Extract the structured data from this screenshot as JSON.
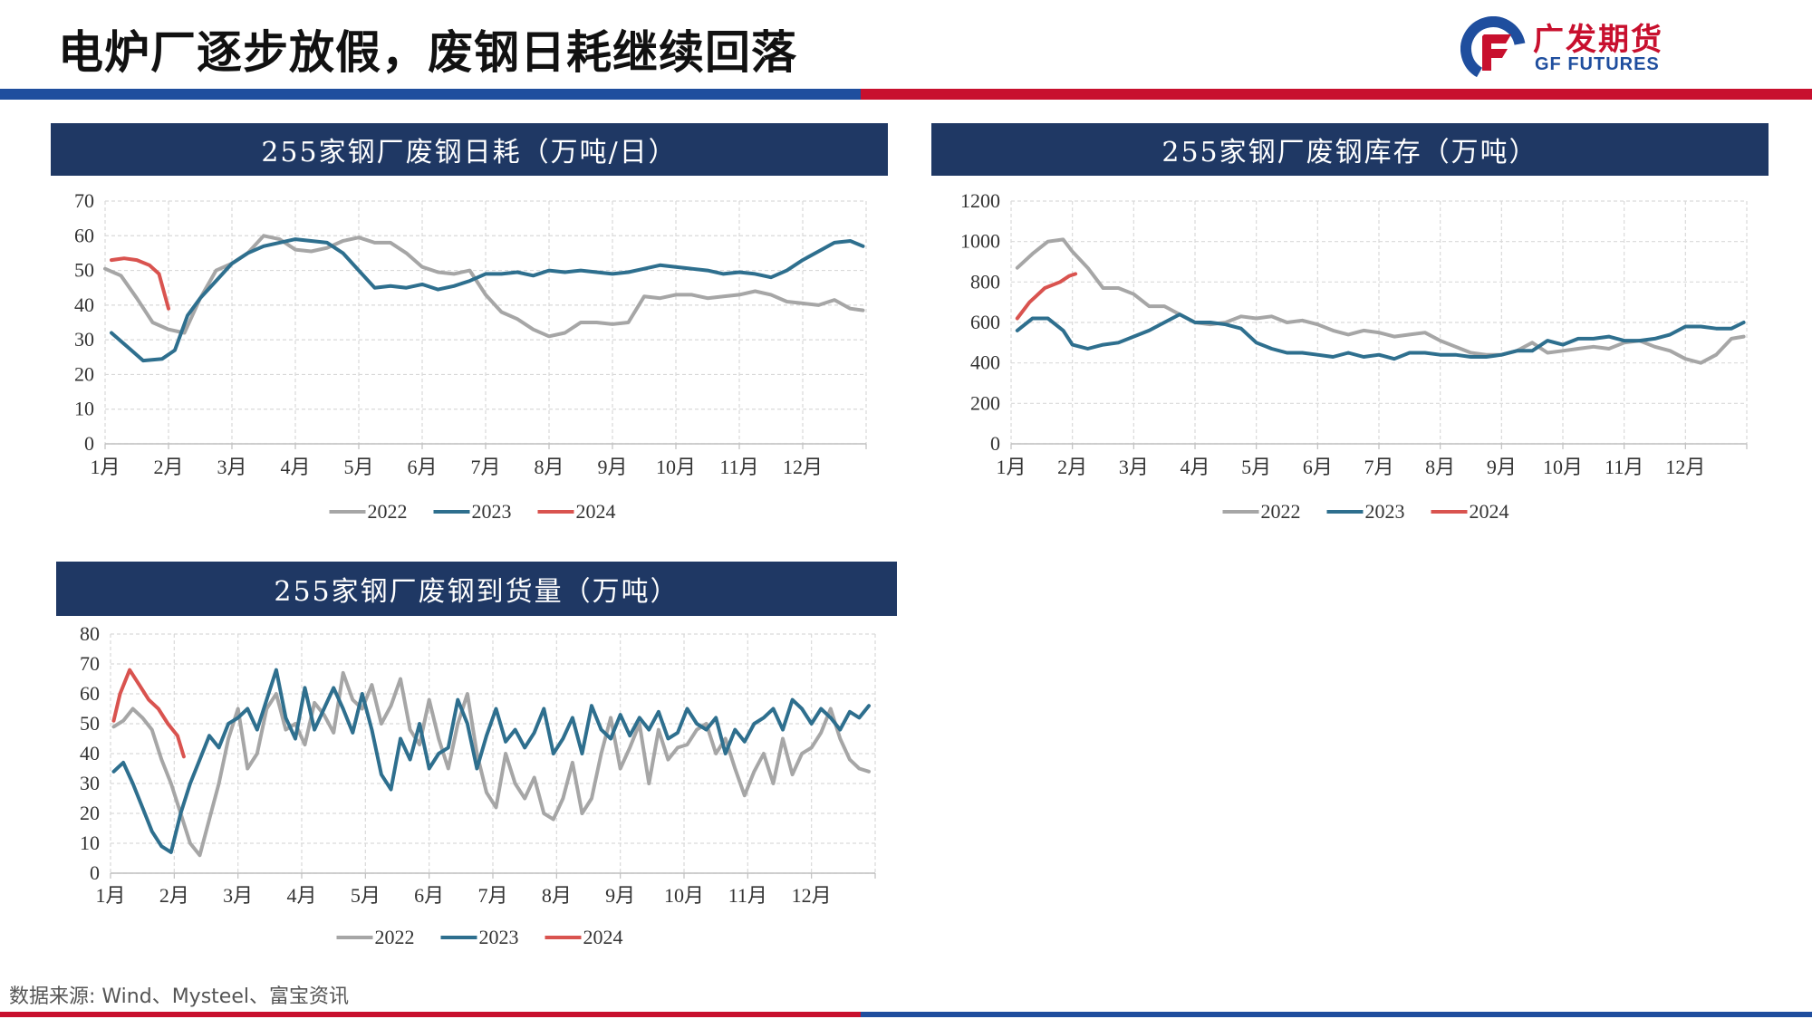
{
  "header": {
    "title": "电炉厂逐步放假，废钢日耗继续回落",
    "logo_cn": "广发期货",
    "logo_en": "GF FUTURES",
    "brand_blue": "#1f4e9e",
    "brand_red": "#c8102e"
  },
  "footer": {
    "source": "数据来源: Wind、Mysteel、富宝资讯"
  },
  "colors": {
    "s2022": "#a6a6a6",
    "s2023": "#2e6f8e",
    "s2024": "#d9534f",
    "header_bg": "#1f3864"
  },
  "legend": [
    "2022",
    "2023",
    "2024"
  ],
  "chart_data": [
    {
      "id": "consumption",
      "type": "line",
      "title": "255家钢厂废钢日耗（万吨/日）",
      "x_categories": [
        "1月",
        "2月",
        "3月",
        "4月",
        "5月",
        "6月",
        "7月",
        "8月",
        "9月",
        "10月",
        "11月",
        "12月"
      ],
      "ylim": [
        0,
        70
      ],
      "yticks": [
        0,
        10,
        20,
        30,
        40,
        50,
        60,
        70
      ],
      "grid": true,
      "legend_position": "bottom",
      "series": [
        {
          "name": "2022",
          "color_key": "s2022",
          "x": [
            0,
            0.25,
            0.5,
            0.75,
            1,
            1.25,
            1.5,
            1.75,
            2,
            2.25,
            2.5,
            2.75,
            3,
            3.25,
            3.5,
            3.75,
            4,
            4.25,
            4.5,
            4.75,
            5,
            5.25,
            5.5,
            5.75,
            6,
            6.25,
            6.5,
            6.75,
            7,
            7.25,
            7.5,
            7.75,
            8,
            8.25,
            8.5,
            8.75,
            9,
            9.25,
            9.5,
            9.75,
            10,
            10.25,
            10.5,
            10.75,
            11,
            11.25,
            11.5,
            11.75,
            11.95
          ],
          "y": [
            50.5,
            48.5,
            42,
            35,
            33,
            32,
            42,
            50,
            52,
            55,
            60,
            59,
            56,
            55.5,
            56.5,
            58.5,
            59.5,
            58,
            58,
            55,
            51,
            49.5,
            49,
            50,
            43,
            38,
            36,
            33,
            31,
            32,
            35,
            35,
            34.5,
            35,
            42.5,
            42,
            43,
            43,
            42,
            42.5,
            43,
            44,
            43,
            41,
            40.5,
            40,
            41.5,
            39,
            38.5
          ]
        },
        {
          "name": "2023",
          "color_key": "s2023",
          "x": [
            0.1,
            0.35,
            0.6,
            0.9,
            1.1,
            1.3,
            1.5,
            1.75,
            2,
            2.25,
            2.5,
            2.75,
            3,
            3.25,
            3.5,
            3.75,
            4,
            4.25,
            4.5,
            4.75,
            5,
            5.25,
            5.5,
            5.75,
            6,
            6.25,
            6.5,
            6.75,
            7,
            7.25,
            7.5,
            7.75,
            8,
            8.25,
            8.5,
            8.75,
            9,
            9.25,
            9.5,
            9.75,
            10,
            10.25,
            10.5,
            10.75,
            11,
            11.25,
            11.5,
            11.75,
            11.95
          ],
          "y": [
            32,
            28,
            24,
            24.5,
            27,
            37,
            42,
            47,
            52,
            55,
            57,
            58,
            59,
            58.5,
            58,
            55,
            50,
            45,
            45.5,
            45,
            46,
            44.5,
            45.5,
            47,
            49,
            49,
            49.5,
            48.5,
            50,
            49.5,
            50,
            49.5,
            49,
            49.5,
            50.5,
            51.5,
            51,
            50.5,
            50,
            49,
            49.5,
            49,
            48,
            50,
            53,
            55.5,
            58,
            58.5,
            57
          ]
        },
        {
          "name": "2024",
          "color_key": "s2024",
          "x": [
            0.1,
            0.3,
            0.5,
            0.7,
            0.85,
            1.0
          ],
          "y": [
            53,
            53.5,
            53,
            51.5,
            49,
            39
          ]
        }
      ]
    },
    {
      "id": "inventory",
      "type": "line",
      "title": "255家钢厂废钢库存（万吨）",
      "x_categories": [
        "1月",
        "2月",
        "3月",
        "4月",
        "5月",
        "6月",
        "7月",
        "8月",
        "9月",
        "10月",
        "11月",
        "12月"
      ],
      "ylim": [
        0,
        1200
      ],
      "yticks": [
        0,
        200,
        400,
        600,
        800,
        1000,
        1200
      ],
      "grid": true,
      "legend_position": "bottom",
      "series": [
        {
          "name": "2022",
          "color_key": "s2022",
          "x": [
            0.1,
            0.35,
            0.6,
            0.85,
            1,
            1.25,
            1.5,
            1.75,
            2,
            2.25,
            2.5,
            2.75,
            3,
            3.25,
            3.5,
            3.75,
            4,
            4.25,
            4.5,
            4.75,
            5,
            5.25,
            5.5,
            5.75,
            6,
            6.25,
            6.5,
            6.75,
            7,
            7.25,
            7.5,
            7.75,
            8,
            8.25,
            8.5,
            8.75,
            9,
            9.25,
            9.5,
            9.75,
            10,
            10.25,
            10.5,
            10.75,
            11,
            11.25,
            11.5,
            11.75,
            11.95
          ],
          "y": [
            870,
            940,
            1000,
            1010,
            950,
            870,
            770,
            770,
            740,
            680,
            680,
            640,
            600,
            590,
            600,
            630,
            620,
            630,
            600,
            610,
            590,
            560,
            540,
            560,
            550,
            530,
            540,
            550,
            510,
            480,
            450,
            440,
            440,
            460,
            500,
            450,
            460,
            470,
            480,
            470,
            500,
            510,
            480,
            460,
            420,
            400,
            440,
            520,
            530
          ]
        },
        {
          "name": "2023",
          "color_key": "s2023",
          "x": [
            0.1,
            0.35,
            0.6,
            0.85,
            1,
            1.25,
            1.5,
            1.75,
            2,
            2.25,
            2.5,
            2.75,
            3,
            3.25,
            3.5,
            3.75,
            4,
            4.25,
            4.5,
            4.75,
            5,
            5.25,
            5.5,
            5.75,
            6,
            6.25,
            6.5,
            6.75,
            7,
            7.25,
            7.5,
            7.75,
            8,
            8.25,
            8.5,
            8.75,
            9,
            9.25,
            9.5,
            9.75,
            10,
            10.25,
            10.5,
            10.75,
            11,
            11.25,
            11.5,
            11.75,
            11.95
          ],
          "y": [
            560,
            620,
            620,
            560,
            490,
            470,
            490,
            500,
            530,
            560,
            600,
            640,
            600,
            600,
            590,
            570,
            500,
            470,
            450,
            450,
            440,
            430,
            450,
            430,
            440,
            420,
            450,
            450,
            440,
            440,
            430,
            430,
            440,
            460,
            460,
            510,
            490,
            520,
            520,
            530,
            510,
            510,
            520,
            540,
            580,
            580,
            570,
            570,
            600
          ]
        },
        {
          "name": "2024",
          "color_key": "s2024",
          "x": [
            0.1,
            0.3,
            0.55,
            0.8,
            0.95,
            1.05
          ],
          "y": [
            620,
            700,
            770,
            800,
            830,
            840
          ]
        }
      ]
    },
    {
      "id": "arrivals",
      "type": "line",
      "title": "255家钢厂废钢到货量（万吨）",
      "x_categories": [
        "1月",
        "2月",
        "3月",
        "4月",
        "5月",
        "6月",
        "7月",
        "8月",
        "9月",
        "10月",
        "11月",
        "12月"
      ],
      "ylim": [
        0,
        80
      ],
      "yticks": [
        0,
        10,
        20,
        30,
        40,
        50,
        60,
        70,
        80
      ],
      "grid": true,
      "legend_position": "bottom",
      "series": [
        {
          "name": "2022",
          "color_key": "s2022",
          "x": [
            0.05,
            0.2,
            0.35,
            0.5,
            0.65,
            0.8,
            0.95,
            1.1,
            1.25,
            1.4,
            1.55,
            1.7,
            1.85,
            2,
            2.15,
            2.3,
            2.45,
            2.6,
            2.75,
            2.9,
            3.05,
            3.2,
            3.35,
            3.5,
            3.65,
            3.8,
            3.95,
            4.1,
            4.25,
            4.4,
            4.55,
            4.7,
            4.85,
            5,
            5.15,
            5.3,
            5.45,
            5.6,
            5.75,
            5.9,
            6.05,
            6.2,
            6.35,
            6.5,
            6.65,
            6.8,
            6.95,
            7.1,
            7.25,
            7.4,
            7.55,
            7.7,
            7.85,
            8,
            8.15,
            8.3,
            8.45,
            8.6,
            8.75,
            8.9,
            9.05,
            9.2,
            9.35,
            9.5,
            9.65,
            9.8,
            9.95,
            10.1,
            10.25,
            10.4,
            10.55,
            10.7,
            10.85,
            11,
            11.15,
            11.3,
            11.45,
            11.6,
            11.75,
            11.9
          ],
          "y": [
            49,
            51,
            55,
            52,
            48,
            38,
            30,
            20,
            10,
            6,
            18,
            30,
            45,
            55,
            35,
            40,
            55,
            60,
            48,
            50,
            43,
            57,
            53,
            47,
            67,
            58,
            55,
            63,
            50,
            56,
            65,
            48,
            43,
            58,
            45,
            35,
            50,
            60,
            40,
            27,
            22,
            40,
            30,
            25,
            32,
            20,
            18,
            25,
            37,
            20,
            25,
            40,
            52,
            35,
            42,
            50,
            30,
            48,
            38,
            42,
            43,
            48,
            50,
            40,
            45,
            35,
            26,
            34,
            40,
            30,
            45,
            33,
            40,
            42,
            47,
            55,
            45,
            38,
            35,
            34
          ]
        },
        {
          "name": "2023",
          "color_key": "s2023",
          "x": [
            0.05,
            0.2,
            0.35,
            0.5,
            0.65,
            0.8,
            0.95,
            1.1,
            1.25,
            1.4,
            1.55,
            1.7,
            1.85,
            2,
            2.15,
            2.3,
            2.45,
            2.6,
            2.75,
            2.9,
            3.05,
            3.2,
            3.35,
            3.5,
            3.65,
            3.8,
            3.95,
            4.1,
            4.25,
            4.4,
            4.55,
            4.7,
            4.85,
            5,
            5.15,
            5.3,
            5.45,
            5.6,
            5.75,
            5.9,
            6.05,
            6.2,
            6.35,
            6.5,
            6.65,
            6.8,
            6.95,
            7.1,
            7.25,
            7.4,
            7.55,
            7.7,
            7.85,
            8,
            8.15,
            8.3,
            8.45,
            8.6,
            8.75,
            8.9,
            9.05,
            9.2,
            9.35,
            9.5,
            9.65,
            9.8,
            9.95,
            10.1,
            10.25,
            10.4,
            10.55,
            10.7,
            10.85,
            11,
            11.15,
            11.3,
            11.45,
            11.6,
            11.75,
            11.9
          ],
          "y": [
            34,
            37,
            30,
            22,
            14,
            9,
            7,
            20,
            30,
            38,
            46,
            42,
            50,
            52,
            55,
            48,
            58,
            68,
            52,
            45,
            62,
            48,
            55,
            62,
            55,
            47,
            60,
            48,
            33,
            28,
            45,
            38,
            50,
            35,
            40,
            42,
            58,
            50,
            35,
            46,
            55,
            44,
            48,
            42,
            47,
            55,
            40,
            45,
            52,
            40,
            56,
            48,
            45,
            53,
            46,
            52,
            48,
            54,
            45,
            47,
            55,
            50,
            48,
            52,
            40,
            48,
            44,
            50,
            52,
            55,
            48,
            58,
            55,
            50,
            55,
            52,
            48,
            54,
            52,
            56
          ]
        },
        {
          "name": "2024",
          "color_key": "s2024",
          "x": [
            0.05,
            0.15,
            0.3,
            0.45,
            0.6,
            0.75,
            0.9,
            1.05,
            1.15
          ],
          "y": [
            51,
            60,
            68,
            63,
            58,
            55,
            50,
            46,
            39
          ]
        }
      ]
    }
  ]
}
